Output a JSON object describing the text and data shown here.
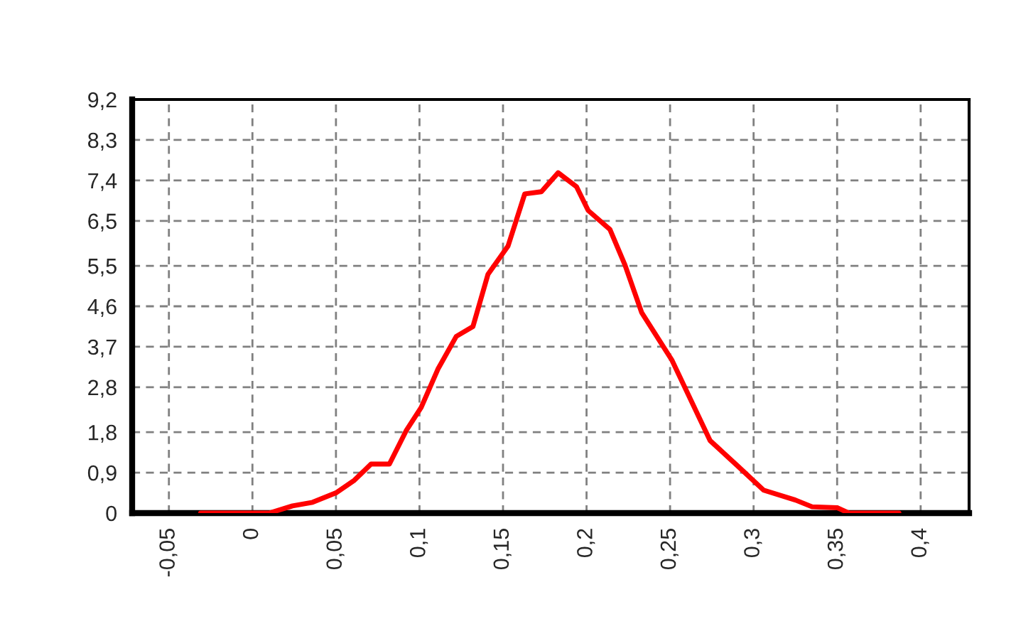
{
  "chart_data": {
    "type": "line",
    "x": [
      -0.031,
      0.01,
      0.024,
      0.036,
      0.05,
      0.061,
      0.071,
      0.082,
      0.092,
      0.101,
      0.111,
      0.122,
      0.132,
      0.141,
      0.153,
      0.163,
      0.173,
      0.183,
      0.194,
      0.201,
      0.214,
      0.223,
      0.233,
      0.251,
      0.274,
      0.291,
      0.306,
      0.325,
      0.335,
      0.35,
      0.357,
      0.387
    ],
    "series": [
      {
        "color": "#ff0000",
        "values": [
          0,
          0,
          0.16,
          0.24,
          0.45,
          0.73,
          1.09,
          1.09,
          1.83,
          2.35,
          3.2,
          3.93,
          4.15,
          5.31,
          5.94,
          7.1,
          7.15,
          7.57,
          7.26,
          6.73,
          6.31,
          5.52,
          4.46,
          3.41,
          1.61,
          1.03,
          0.51,
          0.29,
          0.14,
          0.12,
          0,
          0
        ]
      }
    ],
    "xlim": [
      -0.072,
      0.429
    ],
    "ylim": [
      0,
      9.2
    ],
    "xticks": [
      {
        "value": -0.05,
        "label": "-0,05"
      },
      {
        "value": 0,
        "label": "0"
      },
      {
        "value": 0.05,
        "label": "0,05"
      },
      {
        "value": 0.1,
        "label": "0,1"
      },
      {
        "value": 0.15,
        "label": "0,15"
      },
      {
        "value": 0.2,
        "label": "0,2"
      },
      {
        "value": 0.25,
        "label": "0,25"
      },
      {
        "value": 0.3,
        "label": "0,3"
      },
      {
        "value": 0.35,
        "label": "0,35"
      },
      {
        "value": 0.4,
        "label": "0,4"
      }
    ],
    "yticks": [
      0,
      {
        "value": 0.9,
        "label": "0,9"
      },
      {
        "value": 1.8,
        "label": "1,8"
      },
      {
        "value": 2.8,
        "label": "2,8"
      },
      {
        "value": 3.7,
        "label": "3,7"
      },
      {
        "value": 4.6,
        "label": "4,6"
      },
      {
        "value": 5.5,
        "label": "5,5"
      },
      {
        "value": 6.5,
        "label": "6,5"
      },
      {
        "value": 7.4,
        "label": "7,4"
      },
      {
        "value": 8.3,
        "label": "8,3"
      },
      {
        "value": 9.2,
        "label": "9,2"
      }
    ],
    "grid": true,
    "line_style": "solid"
  }
}
